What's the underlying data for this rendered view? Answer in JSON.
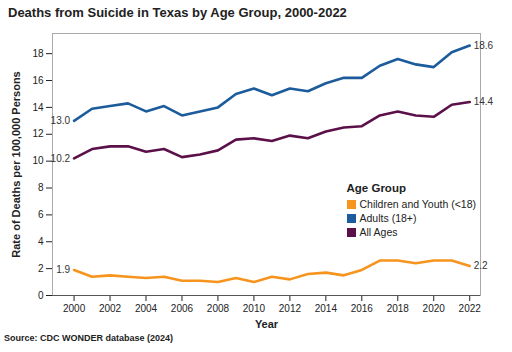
{
  "chart_data": {
    "type": "line",
    "title": "Deaths from Suicide in Texas by Age Group, 2000-2022",
    "x_label": "Year",
    "y_label": "Rate of Deaths per 100,000 Persons",
    "source": "Source: CDC WONDER database (2024)",
    "legend_title": "Age Group",
    "legend": "right",
    "grid": false,
    "x": [
      2000,
      2001,
      2002,
      2003,
      2004,
      2005,
      2006,
      2007,
      2008,
      2009,
      2010,
      2011,
      2012,
      2013,
      2014,
      2015,
      2016,
      2017,
      2018,
      2019,
      2020,
      2021,
      2022
    ],
    "xlim": [
      1998.8,
      2022.6
    ],
    "xticks": [
      2000,
      2002,
      2004,
      2006,
      2008,
      2010,
      2012,
      2014,
      2016,
      2018,
      2020,
      2022
    ],
    "ylim": [
      0,
      19.5
    ],
    "yticks": [
      0,
      2,
      4,
      6,
      8,
      10,
      12,
      14,
      16,
      18
    ],
    "series": [
      {
        "name": "Children and Youth (<18)",
        "color": "#f7941d",
        "values": [
          1.9,
          1.4,
          1.5,
          1.4,
          1.3,
          1.4,
          1.1,
          1.1,
          1.0,
          1.3,
          1.0,
          1.4,
          1.2,
          1.6,
          1.7,
          1.5,
          1.9,
          2.6,
          2.6,
          2.4,
          2.6,
          2.6,
          2.2
        ]
      },
      {
        "name": "Adults (18+)",
        "color": "#1c5b9c",
        "values": [
          13.0,
          13.9,
          14.1,
          14.3,
          13.7,
          14.1,
          13.4,
          13.7,
          14.0,
          15.0,
          15.4,
          14.9,
          15.4,
          15.2,
          15.8,
          16.2,
          16.2,
          17.1,
          17.6,
          17.2,
          17.0,
          18.1,
          18.6
        ]
      },
      {
        "name": "All Ages",
        "color": "#5c1049",
        "values": [
          10.2,
          10.9,
          11.1,
          11.1,
          10.7,
          10.9,
          10.3,
          10.5,
          10.8,
          11.6,
          11.7,
          11.5,
          11.9,
          11.7,
          12.2,
          12.5,
          12.6,
          13.4,
          13.7,
          13.4,
          13.3,
          14.2,
          14.4
        ]
      }
    ],
    "annotations": [
      {
        "x": 2000,
        "y": 13.0,
        "text": "13.0"
      },
      {
        "x": 2000,
        "y": 10.2,
        "text": "10.2"
      },
      {
        "x": 2000,
        "y": 1.9,
        "text": "1.9"
      },
      {
        "x": 2022,
        "y": 18.6,
        "text": "18.6"
      },
      {
        "x": 2022,
        "y": 14.4,
        "text": "14.4"
      },
      {
        "x": 2022,
        "y": 2.2,
        "text": "2.2"
      }
    ]
  }
}
